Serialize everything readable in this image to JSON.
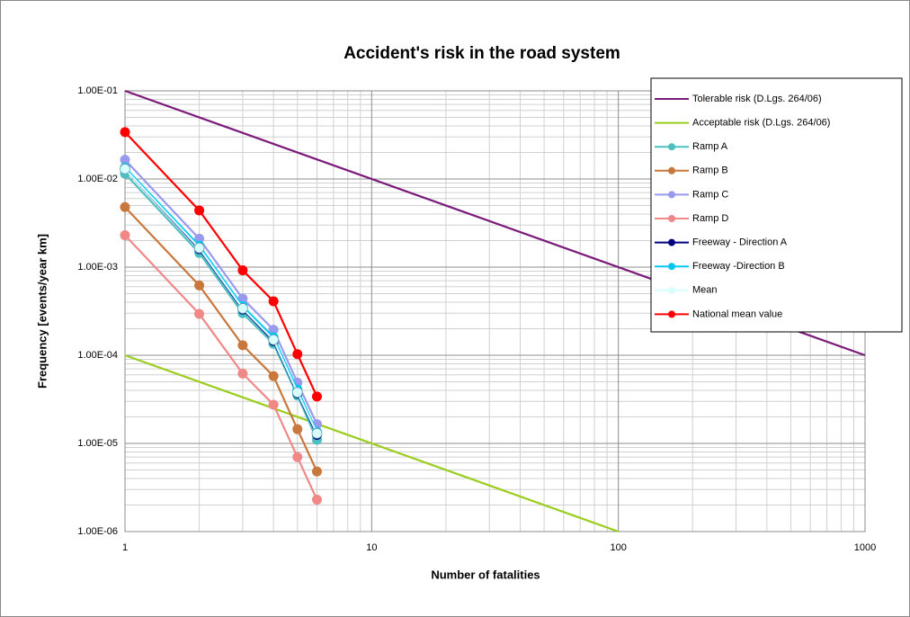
{
  "chart_data": {
    "type": "line",
    "title": "Accident's risk in the road system",
    "xlabel": "Number of fatalities",
    "ylabel": "Frequency [events/year km]",
    "xscale": "log",
    "yscale": "log",
    "xlim": [
      1,
      1000
    ],
    "ylim": [
      1e-06,
      0.1
    ],
    "xticks": [
      1,
      10,
      100,
      1000
    ],
    "yticks": [
      {
        "value": 0.1,
        "label": "1.00E-01"
      },
      {
        "value": 0.01,
        "label": "1.00E-02"
      },
      {
        "value": 0.001,
        "label": "1.00E-03"
      },
      {
        "value": 0.0001,
        "label": "1.00E-04"
      },
      {
        "value": 1e-05,
        "label": "1.00E-05"
      },
      {
        "value": 1e-06,
        "label": "1.00E-06"
      }
    ],
    "grid": true,
    "minor_grid": true,
    "legend": "upper right",
    "series": [
      {
        "name": "Tolerable risk (D.Lgs. 264/06)",
        "color": "#7b1a7b",
        "marker": false,
        "x": [
          1,
          1000
        ],
        "values": [
          0.1,
          0.0001
        ]
      },
      {
        "name": "Acceptable risk (D.Lgs. 264/06)",
        "color": "#9acd1e",
        "marker": false,
        "x": [
          1,
          100
        ],
        "values": [
          0.0001,
          1e-06
        ]
      },
      {
        "name": "Ramp A",
        "color": "#4bc0c0",
        "marker": true,
        "x": [
          1,
          2,
          3,
          4,
          5,
          6
        ],
        "values": [
          0.0115,
          0.00145,
          0.0003,
          0.000135,
          3.5e-05,
          1.1e-05
        ]
      },
      {
        "name": "Ramp B",
        "color": "#c8783c",
        "marker": true,
        "x": [
          1,
          2,
          3,
          4,
          5,
          6
        ],
        "values": [
          0.0048,
          0.00062,
          0.00013,
          5.8e-05,
          1.45e-05,
          4.8e-06
        ]
      },
      {
        "name": "Ramp C",
        "color": "#9999ee",
        "marker": true,
        "x": [
          1,
          2,
          3,
          4,
          5,
          6
        ],
        "values": [
          0.0165,
          0.0021,
          0.00044,
          0.000195,
          4.9e-05,
          1.65e-05
        ]
      },
      {
        "name": "Ramp D",
        "color": "#f08888",
        "marker": true,
        "x": [
          1,
          2,
          3,
          4,
          5,
          6
        ],
        "values": [
          0.0023,
          0.000295,
          6.2e-05,
          2.75e-05,
          7e-06,
          2.3e-06
        ]
      },
      {
        "name": "Freeway - Direction A",
        "color": "#000080",
        "marker": true,
        "x": [
          1,
          2,
          3,
          4,
          5,
          6
        ],
        "values": [
          0.013,
          0.0016,
          0.00033,
          0.000145,
          3.7e-05,
          1.25e-05
        ]
      },
      {
        "name": "Freeway -Direction B",
        "color": "#00c8f0",
        "marker": true,
        "x": [
          1,
          2,
          3,
          4,
          5,
          6
        ],
        "values": [
          0.0135,
          0.00175,
          0.00036,
          0.00016,
          4.1e-05,
          1.35e-05
        ]
      },
      {
        "name": "Mean",
        "color": "#d8ffff",
        "marker": true,
        "x": [
          1,
          2,
          3,
          4,
          5,
          6
        ],
        "values": [
          0.013,
          0.00165,
          0.00034,
          0.00015,
          3.8e-05,
          1.3e-05
        ]
      },
      {
        "name": "National mean value",
        "color": "#ff0000",
        "marker": true,
        "x": [
          1,
          2,
          3,
          4,
          5,
          6
        ],
        "values": [
          0.034,
          0.0044,
          0.00092,
          0.00041,
          0.000103,
          3.4e-05
        ]
      }
    ]
  }
}
